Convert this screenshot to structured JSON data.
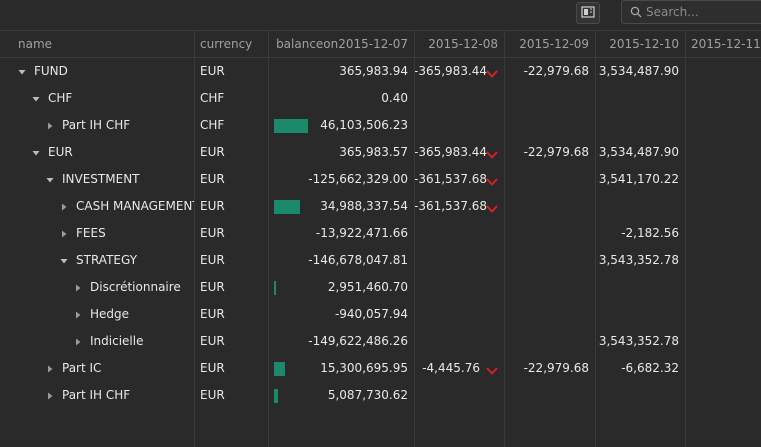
{
  "toolbar": {
    "icon": "layout-toggle-icon",
    "search_placeholder": "Search..."
  },
  "columns": [
    "name",
    "currency",
    "balanceon2015-12-07",
    "2015-12-08",
    "2015-12-09",
    "2015-12-10",
    "2015-12-11"
  ],
  "rows": [
    {
      "name": "FUND",
      "level": 0,
      "toggle": "down",
      "currency": "EUR",
      "balance": "365,983.94",
      "bar": 0,
      "d08": "-365,983.44",
      "d08_down": true,
      "d09": "-22,979.68",
      "d10": "3,534,487.90"
    },
    {
      "name": "CHF",
      "level": 1,
      "toggle": "down",
      "currency": "CHF",
      "balance": "0.40",
      "bar": 0,
      "d08": "",
      "d08_down": false,
      "d09": "",
      "d10": ""
    },
    {
      "name": "Part IH CHF",
      "level": 2,
      "toggle": "right",
      "currency": "CHF",
      "balance": "46,103,506.23",
      "bar": 1.0,
      "d08": "",
      "d08_down": false,
      "d09": "",
      "d10": ""
    },
    {
      "name": "EUR",
      "level": 1,
      "toggle": "down",
      "currency": "EUR",
      "balance": "365,983.57",
      "bar": 0,
      "d08": "-365,983.44",
      "d08_down": true,
      "d09": "-22,979.68",
      "d10": "3,534,487.90"
    },
    {
      "name": "INVESTMENT",
      "level": 2,
      "toggle": "down",
      "currency": "EUR",
      "balance": "-125,662,329.00",
      "bar": 0,
      "d08": "-361,537.68",
      "d08_down": true,
      "d09": "",
      "d10": "3,541,170.22"
    },
    {
      "name": "CASH MANAGEMENT",
      "level": 3,
      "toggle": "right",
      "currency": "EUR",
      "balance": "34,988,337.54",
      "bar": 0.76,
      "d08": "-361,537.68",
      "d08_down": true,
      "d09": "",
      "d10": ""
    },
    {
      "name": "FEES",
      "level": 3,
      "toggle": "right",
      "currency": "EUR",
      "balance": "-13,922,471.66",
      "bar": 0,
      "d08": "",
      "d08_down": false,
      "d09": "",
      "d10": "-2,182.56"
    },
    {
      "name": "STRATEGY",
      "level": 3,
      "toggle": "down",
      "currency": "EUR",
      "balance": "-146,678,047.81",
      "bar": 0,
      "d08": "",
      "d08_down": false,
      "d09": "",
      "d10": "3,543,352.78"
    },
    {
      "name": "Discrétionnaire",
      "level": 4,
      "toggle": "right",
      "currency": "EUR",
      "balance": "2,951,460.70",
      "bar": 0.064,
      "d08": "",
      "d08_down": false,
      "d09": "",
      "d10": ""
    },
    {
      "name": "Hedge",
      "level": 4,
      "toggle": "right",
      "currency": "EUR",
      "balance": "-940,057.94",
      "bar": 0,
      "d08": "",
      "d08_down": false,
      "d09": "",
      "d10": ""
    },
    {
      "name": "Indicielle",
      "level": 4,
      "toggle": "right",
      "currency": "EUR",
      "balance": "-149,622,486.26",
      "bar": 0,
      "d08": "",
      "d08_down": false,
      "d09": "",
      "d10": "3,543,352.78"
    },
    {
      "name": "Part IC",
      "level": 2,
      "toggle": "right",
      "currency": "EUR",
      "balance": "15,300,695.95",
      "bar": 0.33,
      "d08": "-4,445.76",
      "d08_down": true,
      "d09": "-22,979.68",
      "d10": "-6,682.32"
    },
    {
      "name": "Part IH CHF",
      "level": 2,
      "toggle": "right",
      "currency": "EUR",
      "balance": "5,087,730.62",
      "bar": 0.11,
      "d08": "",
      "d08_down": false,
      "d09": "",
      "d10": ""
    }
  ],
  "colors": {
    "bar": "#1b8a6b",
    "down_arrow": "#e02020"
  }
}
